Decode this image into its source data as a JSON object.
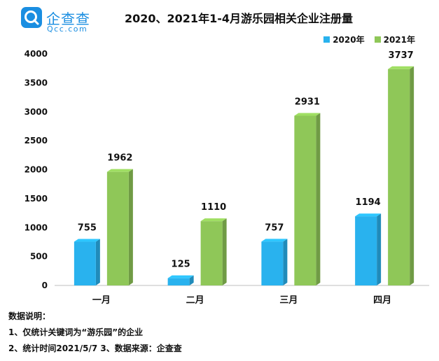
{
  "logo": {
    "cn": "企查查",
    "en": "Qcc.com"
  },
  "chart_data": {
    "type": "bar",
    "title": "2020、2021年1-4月游乐园相关企业注册量",
    "categories": [
      "一月",
      "二月",
      "三月",
      "四月"
    ],
    "series": [
      {
        "name": "2020年",
        "values": [
          755,
          125,
          757,
          1194
        ],
        "color": "#29b2ee"
      },
      {
        "name": "2021年",
        "values": [
          1962,
          1110,
          2931,
          3737
        ],
        "color": "#8fc758"
      }
    ],
    "ylim": [
      0,
      4000
    ],
    "yticks": [
      0,
      500,
      1000,
      1500,
      2000,
      2500,
      3000,
      3500,
      4000
    ],
    "grid": false,
    "legend_position": "top-right",
    "three_d": true
  },
  "notes": {
    "heading": "数据说明：",
    "line1": "1、仅统计关键词为“游乐园”的企业",
    "line2": "2、统计时间2021/5/7   3、数据来源：企查查"
  }
}
